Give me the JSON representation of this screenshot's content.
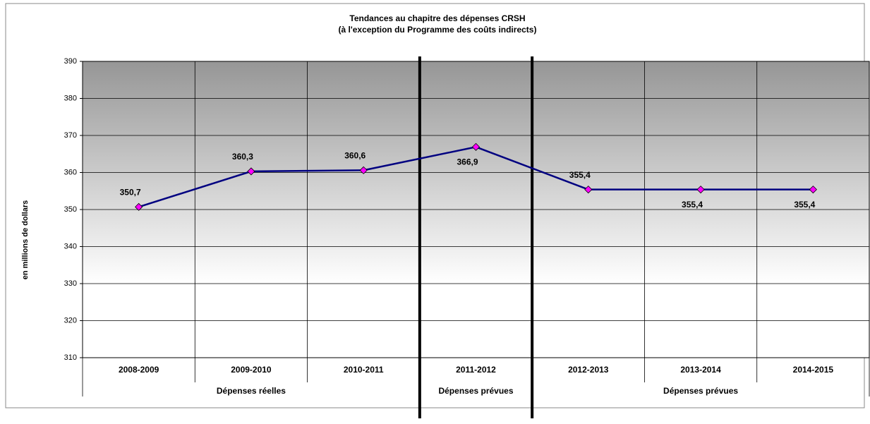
{
  "chart_data": {
    "type": "line",
    "title": [
      "Tendances au chapitre des dépenses  CRSH",
      "(à l'exception du Programme des coûts indirects)"
    ],
    "y_label": "en millions de dollars",
    "categories": [
      "2008-2009",
      "2009-2010",
      "2010-2011",
      "2011-2012",
      "2012-2013",
      "2013-2014",
      "2014-2015"
    ],
    "groups": [
      {
        "label": "Dépenses réelles",
        "span": 3
      },
      {
        "label": "Dépenses prévues",
        "span": 1
      },
      {
        "label": "Dépenses prévues",
        "span": 3
      }
    ],
    "series": [
      {
        "name": "Dépenses",
        "color": "#000080",
        "marker_color": "#ff00ff",
        "values": [
          350.7,
          360.3,
          360.6,
          366.9,
          355.4,
          355.4,
          355.4
        ],
        "value_labels": [
          "350,7",
          "360,3",
          "360,6",
          "366,9",
          "355,4",
          "355,4",
          "355,4"
        ]
      }
    ],
    "ylim": [
      310,
      390
    ],
    "yticks": [
      310,
      320,
      330,
      340,
      350,
      360,
      370,
      380,
      390
    ],
    "grid": true
  }
}
